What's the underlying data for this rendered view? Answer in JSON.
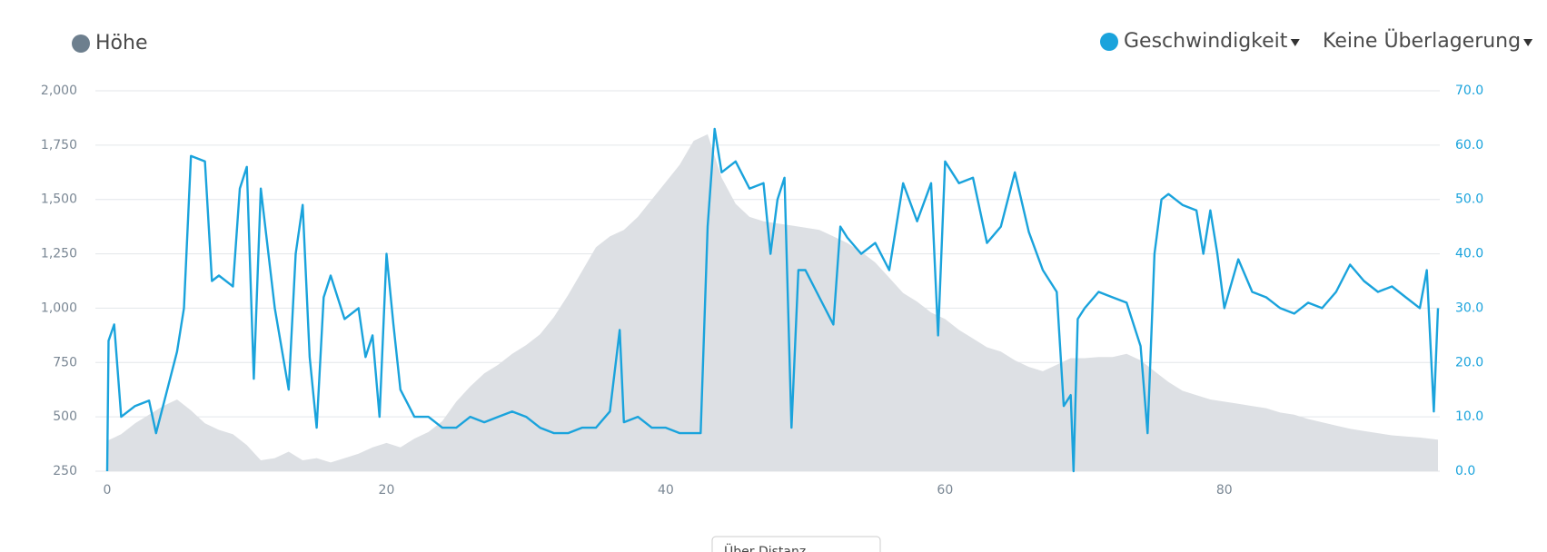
{
  "chart_data": {
    "type": "area-line",
    "overlay_menu": "Keine Überlagerung",
    "x_mode": "Über Distanz",
    "xlim": [
      0,
      95.3
    ],
    "xticks": [
      0,
      20,
      40,
      60,
      80
    ],
    "ylim": [
      250,
      2000
    ],
    "yticks": [
      250,
      500,
      750,
      {
        "value": 1000,
        "label": "1,000"
      },
      {
        "value": 1250,
        "label": "1,250"
      },
      {
        "value": 1500,
        "label": "1,500"
      },
      {
        "value": 1750,
        "label": "1,750"
      },
      {
        "value": 2000,
        "label": "2,000"
      }
    ],
    "y2lim": [
      0,
      70
    ],
    "y2ticks": [
      {
        "value": 0,
        "label": "0.0"
      },
      {
        "value": 10,
        "label": "10.0"
      },
      {
        "value": 20,
        "label": "20.0"
      },
      {
        "value": 30,
        "label": "30.0"
      },
      {
        "value": 40,
        "label": "40.0"
      },
      {
        "value": 50,
        "label": "50.0"
      },
      {
        "value": 60,
        "label": "60.0"
      },
      {
        "value": 70,
        "label": "70.0"
      }
    ],
    "grid": true,
    "series": [
      {
        "name": "Höhe",
        "color": "#dde0e4",
        "legend_color": "#6d7f8e",
        "kind": "area",
        "axis": "y",
        "x": [
          0,
          1,
          2,
          3,
          4,
          5,
          6,
          7,
          8,
          9,
          10,
          11,
          12,
          13,
          14,
          15,
          16,
          17,
          18,
          19,
          20,
          21,
          22,
          23,
          24,
          25,
          26,
          27,
          28,
          29,
          30,
          31,
          32,
          33,
          34,
          35,
          36,
          37,
          38,
          39,
          40,
          41,
          42,
          43,
          44,
          45,
          46,
          47,
          48,
          49,
          50,
          51,
          52,
          53,
          54,
          55,
          56,
          57,
          58,
          59,
          60,
          61,
          62,
          63,
          64,
          65,
          66,
          67,
          68,
          69,
          70,
          71,
          72,
          73,
          74,
          75,
          76,
          77,
          78,
          79,
          80,
          81,
          82,
          83,
          84,
          85,
          86,
          87,
          88,
          89,
          90,
          91,
          92,
          93,
          94,
          95.3
        ],
        "values": [
          390,
          420,
          470,
          510,
          550,
          580,
          530,
          470,
          440,
          420,
          370,
          300,
          310,
          340,
          300,
          310,
          290,
          310,
          330,
          360,
          380,
          360,
          400,
          430,
          480,
          570,
          640,
          700,
          740,
          790,
          830,
          880,
          960,
          1060,
          1170,
          1280,
          1330,
          1360,
          1420,
          1500,
          1580,
          1660,
          1770,
          1800,
          1600,
          1480,
          1420,
          1400,
          1390,
          1380,
          1370,
          1360,
          1330,
          1300,
          1260,
          1210,
          1140,
          1070,
          1030,
          980,
          950,
          900,
          860,
          820,
          800,
          760,
          730,
          710,
          740,
          770,
          770,
          775,
          775,
          790,
          760,
          710,
          660,
          620,
          600,
          580,
          570,
          560,
          550,
          540,
          520,
          510,
          490,
          475,
          460,
          445,
          435,
          425,
          415,
          410,
          405,
          395
        ]
      },
      {
        "name": "Geschwindigkeit",
        "color": "#1aa3dc",
        "kind": "line",
        "axis": "y2",
        "x": [
          0,
          0.1,
          0.5,
          1,
          2,
          3,
          3.5,
          4,
          5,
          5.5,
          6,
          7,
          7.5,
          8,
          9,
          9.5,
          10,
          10.5,
          11,
          12,
          13,
          13.5,
          14,
          14.5,
          15,
          15.5,
          16,
          17,
          18,
          18.5,
          19,
          19.5,
          20,
          20.5,
          21,
          22,
          23,
          24,
          25,
          26,
          27,
          28,
          29,
          30,
          31,
          32,
          33,
          34,
          35,
          36,
          36.7,
          37,
          38,
          39,
          40,
          41,
          42,
          42.5,
          43,
          43.5,
          44,
          45,
          46,
          47,
          47.5,
          48,
          48.5,
          49,
          49.5,
          50,
          51,
          52,
          52.5,
          53,
          54,
          55,
          56,
          57,
          58,
          59,
          59.5,
          60,
          61,
          62,
          63,
          64,
          65,
          66,
          67,
          68,
          68.5,
          69,
          69.2,
          69.5,
          70,
          71,
          72,
          73,
          74,
          74.5,
          75,
          75.5,
          76,
          77,
          78,
          78.5,
          79,
          79.5,
          80,
          81,
          82,
          83,
          84,
          85,
          86,
          87,
          88,
          89,
          90,
          91,
          92,
          93,
          94,
          94.5,
          95,
          95.3
        ],
        "values": [
          0,
          24,
          27,
          10,
          12,
          13,
          7,
          12,
          22,
          30,
          58,
          57,
          35,
          36,
          34,
          52,
          56,
          17,
          52,
          30,
          15,
          40,
          49,
          21,
          8,
          32,
          36,
          28,
          30,
          21,
          25,
          10,
          40,
          27,
          15,
          10,
          10,
          8,
          8,
          10,
          9,
          10,
          11,
          10,
          8,
          7,
          7,
          8,
          8,
          11,
          26,
          9,
          10,
          8,
          8,
          7,
          7,
          7,
          45,
          63,
          55,
          57,
          52,
          53,
          40,
          50,
          54,
          8,
          37,
          37,
          32,
          27,
          45,
          43,
          40,
          42,
          37,
          53,
          46,
          53,
          25,
          57,
          53,
          54,
          42,
          45,
          55,
          44,
          37,
          33,
          12,
          14,
          0,
          28,
          30,
          33,
          32,
          31,
          23,
          7,
          40,
          50,
          51,
          49,
          48,
          40,
          48,
          40,
          30,
          39,
          33,
          32,
          30,
          29,
          31,
          30,
          33,
          38,
          35,
          33,
          34,
          32,
          30,
          37,
          11,
          30
        ]
      }
    ]
  }
}
